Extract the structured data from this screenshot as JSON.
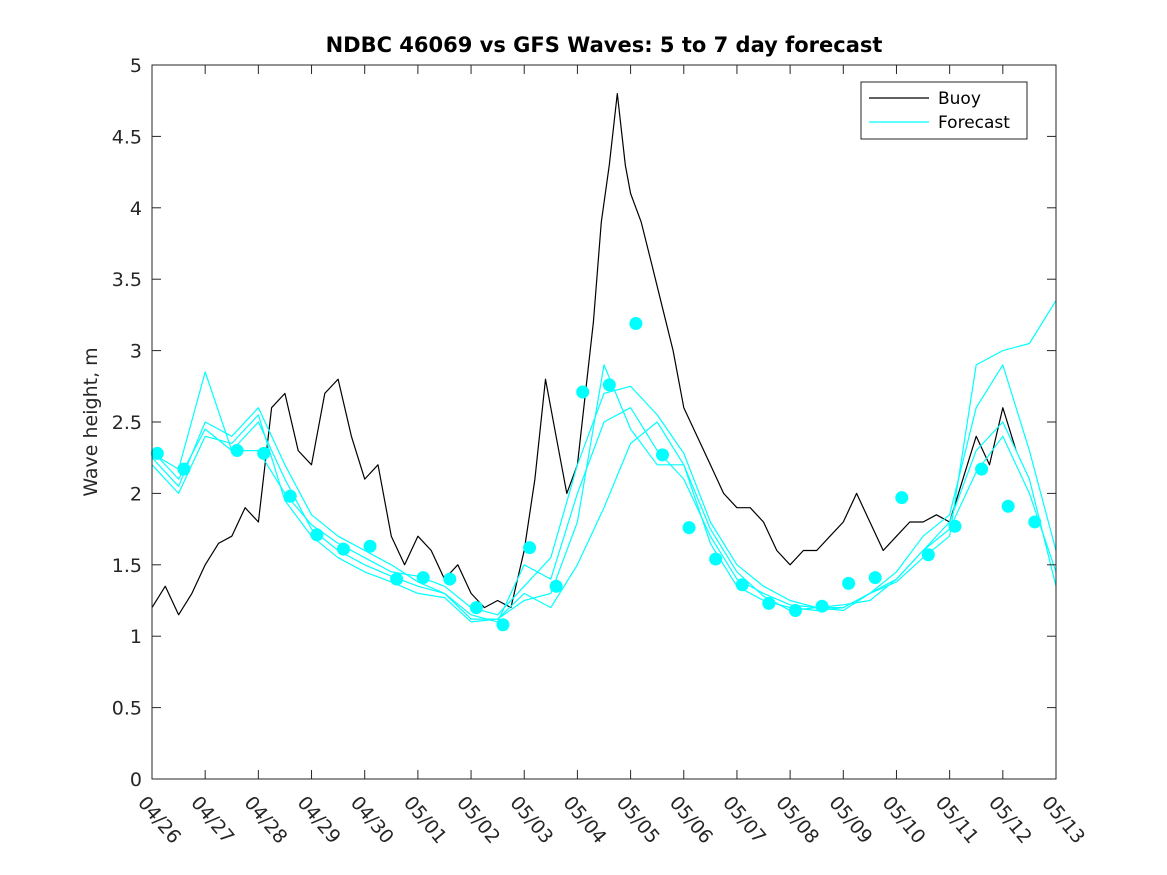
{
  "chart_data": {
    "type": "line",
    "title": "NDBC 46069 vs GFS Waves: 5 to 7 day forecast",
    "xlabel": "",
    "ylabel": "Wave height, m",
    "xlim": [
      0,
      17
    ],
    "ylim": [
      0,
      5
    ],
    "x_tick_labels": [
      "04/26",
      "04/27",
      "04/28",
      "04/29",
      "04/30",
      "05/01",
      "05/02",
      "05/03",
      "05/04",
      "05/05",
      "05/06",
      "05/07",
      "05/08",
      "05/09",
      "05/10",
      "05/11",
      "05/12",
      "05/13"
    ],
    "y_ticks": [
      0,
      0.5,
      1,
      1.5,
      2,
      2.5,
      3,
      3.5,
      4,
      4.5,
      5
    ],
    "y_tick_labels": [
      "0",
      "0.5",
      "1",
      "1.5",
      "2",
      "2.5",
      "3",
      "3.5",
      "4",
      "4.5",
      "5"
    ],
    "legend_position": "top-right",
    "grid": false,
    "colors": {
      "buoy": "#000000",
      "forecast": "#00ffff",
      "axis": "#262626"
    },
    "series": [
      {
        "name": "Buoy",
        "style": "line",
        "x": [
          0,
          0.25,
          0.5,
          0.75,
          1,
          1.25,
          1.5,
          1.75,
          2,
          2.25,
          2.5,
          2.75,
          3,
          3.25,
          3.5,
          3.75,
          4,
          4.25,
          4.5,
          4.75,
          5,
          5.25,
          5.5,
          5.75,
          6,
          6.25,
          6.5,
          6.75,
          7,
          7.2,
          7.4,
          7.6,
          7.8,
          8,
          8.15,
          8.3,
          8.45,
          8.6,
          8.75,
          8.9,
          9,
          9.2,
          9.4,
          9.6,
          9.8,
          10,
          10.25,
          10.5,
          10.75,
          11,
          11.25,
          11.5,
          11.75,
          12,
          12.25,
          12.5,
          12.75,
          13,
          13.25,
          13.5,
          13.75,
          14,
          14.25,
          14.5,
          14.75,
          15,
          15.25,
          15.5,
          15.75,
          16,
          16.25
        ],
        "values": [
          1.2,
          1.35,
          1.15,
          1.3,
          1.5,
          1.65,
          1.7,
          1.9,
          1.8,
          2.6,
          2.7,
          2.3,
          2.2,
          2.7,
          2.8,
          2.4,
          2.1,
          2.2,
          1.7,
          1.5,
          1.7,
          1.6,
          1.4,
          1.5,
          1.3,
          1.2,
          1.25,
          1.2,
          1.6,
          2.1,
          2.8,
          2.4,
          2.0,
          2.2,
          2.7,
          3.2,
          3.9,
          4.3,
          4.8,
          4.3,
          4.1,
          3.9,
          3.6,
          3.3,
          3.0,
          2.6,
          2.4,
          2.2,
          2.0,
          1.9,
          1.9,
          1.8,
          1.6,
          1.5,
          1.6,
          1.6,
          1.7,
          1.8,
          2.0,
          1.8,
          1.6,
          1.7,
          1.8,
          1.8,
          1.85,
          1.8,
          2.1,
          2.4,
          2.2,
          2.6,
          2.3
        ]
      },
      {
        "name": "Forecast",
        "style": "line",
        "x": [
          0,
          0.5,
          1,
          1.5,
          2,
          2.5,
          3,
          3.5,
          4,
          4.5,
          5,
          5.5,
          6,
          6.5,
          7,
          7.5,
          8,
          8.5,
          9,
          9.5,
          10,
          10.5,
          11,
          11.5,
          12,
          12.5,
          13,
          13.5,
          14,
          14.5,
          15,
          15.5,
          16,
          16.5,
          17
        ],
        "values": [
          2.28,
          2.17,
          2.85,
          2.3,
          2.3,
          2.0,
          1.78,
          1.65,
          1.55,
          1.45,
          1.42,
          1.35,
          1.2,
          1.15,
          1.35,
          1.55,
          2.2,
          2.7,
          2.75,
          2.55,
          2.28,
          1.8,
          1.5,
          1.35,
          1.25,
          1.2,
          1.22,
          1.25,
          1.4,
          1.6,
          1.75,
          2.15,
          2.4,
          2.0,
          1.45
        ]
      },
      {
        "name": "",
        "style": "line",
        "x": [
          0,
          0.5,
          1,
          1.5,
          2,
          2.5,
          3,
          3.5,
          4,
          4.5,
          5,
          5.5,
          6,
          6.5,
          7,
          7.5,
          8,
          8.5,
          9,
          9.5,
          10,
          10.5,
          11,
          11.5,
          12,
          12.5,
          13,
          13.5,
          14,
          14.5,
          15,
          15.5,
          16,
          16.5,
          17
        ],
        "values": [
          2.25,
          2.05,
          2.5,
          2.4,
          2.6,
          2.2,
          1.85,
          1.7,
          1.6,
          1.5,
          1.38,
          1.3,
          1.15,
          1.1,
          1.5,
          1.4,
          2.0,
          2.5,
          2.6,
          2.3,
          2.1,
          1.7,
          1.4,
          1.3,
          1.22,
          1.2,
          1.2,
          1.3,
          1.45,
          1.7,
          1.85,
          2.6,
          2.9,
          2.3,
          1.6
        ]
      },
      {
        "name": "",
        "style": "line",
        "x": [
          0,
          0.5,
          1,
          1.5,
          2,
          2.5,
          3,
          3.5,
          4,
          4.5,
          5,
          5.5,
          6,
          6.5,
          7,
          7.5,
          8,
          8.5,
          9,
          9.5,
          10,
          10.5,
          11,
          11.5,
          12,
          12.5,
          13,
          13.5,
          14,
          14.5,
          15,
          15.5,
          16,
          16.5,
          17
        ],
        "values": [
          2.3,
          2.1,
          2.45,
          2.3,
          2.5,
          2.1,
          1.75,
          1.6,
          1.5,
          1.42,
          1.35,
          1.3,
          1.12,
          1.12,
          1.25,
          1.3,
          1.8,
          2.9,
          2.45,
          2.2,
          2.2,
          1.75,
          1.45,
          1.28,
          1.18,
          1.2,
          1.18,
          1.3,
          1.4,
          1.6,
          1.8,
          2.3,
          2.5,
          2.1,
          1.35
        ]
      },
      {
        "name": "",
        "style": "line",
        "x": [
          0,
          0.5,
          1,
          1.5,
          2,
          2.5,
          3,
          3.5,
          4,
          4.5,
          5,
          5.5,
          6,
          6.5,
          7,
          7.5,
          8,
          8.5,
          9,
          9.5,
          10,
          10.5,
          11,
          11.5,
          12,
          12.5,
          13,
          13.5,
          14,
          14.5,
          15,
          15.5,
          16,
          16.5,
          17
        ],
        "values": [
          2.2,
          2.0,
          2.4,
          2.35,
          2.55,
          1.95,
          1.7,
          1.55,
          1.45,
          1.38,
          1.3,
          1.27,
          1.1,
          1.12,
          1.3,
          1.2,
          1.5,
          1.9,
          2.35,
          2.5,
          2.2,
          1.65,
          1.35,
          1.25,
          1.2,
          1.18,
          1.2,
          1.3,
          1.38,
          1.55,
          1.7,
          2.9,
          3.0,
          3.05,
          3.35
        ]
      },
      {
        "name": "",
        "style": "markers",
        "x": [
          0.1,
          0.6,
          1.6,
          2.1,
          2.6,
          3.1,
          3.6,
          4.1,
          4.6,
          5.1,
          5.6,
          6.1,
          6.6,
          7.1,
          7.6,
          8.1,
          8.6,
          9.1,
          9.6,
          10.1,
          10.6,
          11.1,
          11.6,
          12.1,
          12.6,
          13.1,
          13.6,
          14.1,
          14.6,
          15.1,
          15.6,
          16.1,
          16.6
        ],
        "values": [
          2.28,
          2.17,
          2.3,
          2.28,
          1.98,
          1.71,
          1.61,
          1.63,
          1.4,
          1.41,
          1.4,
          1.2,
          1.08,
          1.62,
          1.35,
          2.71,
          2.76,
          3.19,
          2.27,
          1.76,
          1.54,
          1.36,
          1.23,
          1.18,
          1.21,
          1.37,
          1.41,
          1.97,
          1.57,
          1.77,
          2.17,
          1.91,
          1.8
        ]
      }
    ]
  }
}
